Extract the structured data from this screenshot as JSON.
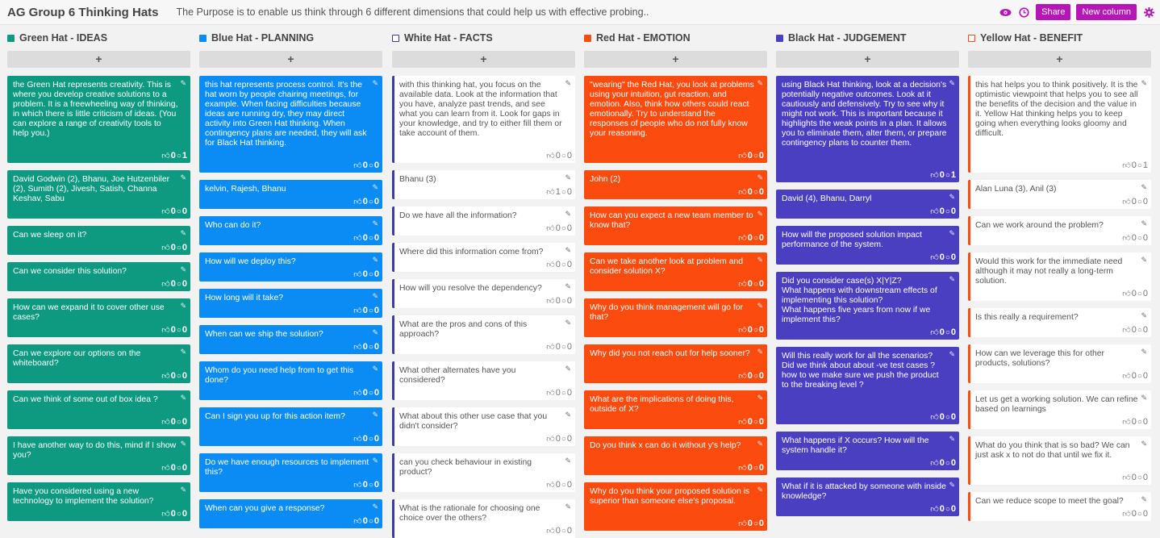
{
  "board": {
    "title": "AG Group 6 Thinking Hats",
    "purpose": "The Purpose is to enable us think through 6 different dimensions that could help us with effective probing.."
  },
  "actions": {
    "share_label": "Share",
    "new_column_label": "New column",
    "accent": "#b417b5"
  },
  "add_label": "+",
  "columns": [
    {
      "title": "Green Hat - IDEAS",
      "color": "#0e9a81",
      "style": "solid",
      "cards": [
        {
          "text": "the Green Hat represents creativity. This is where you develop creative solutions to a problem. It is a freewheeling way of thinking, in which there is little criticism of ideas. (You can explore a range of creativity tools to help you.)",
          "likes": "0",
          "comments": "1"
        },
        {
          "text": "David Godwin (2), Bhanu, Joe Hutzenbiler (2), Sumith (2), Jivesh, Satish, Channa Keshav, Sabu",
          "likes": "0",
          "comments": "0"
        },
        {
          "text": "Can we sleep on it?",
          "likes": "0",
          "comments": "0"
        },
        {
          "text": "Can we consider this solution?",
          "likes": "0",
          "comments": "0"
        },
        {
          "text": "How can we expand it to cover other use cases?",
          "likes": "0",
          "comments": "0"
        },
        {
          "text": "Can we explore our options on the whiteboard?",
          "likes": "0",
          "comments": "0"
        },
        {
          "text": "Can we think of some out of box idea ?",
          "likes": "0",
          "comments": "0"
        },
        {
          "text": "I have another way to do this, mind if I show you?",
          "likes": "0",
          "comments": "0"
        },
        {
          "text": "Have you considered using a new technology to implement the solution?",
          "likes": "0",
          "comments": "0"
        }
      ]
    },
    {
      "title": "Blue Hat - PLANNING",
      "color": "#0a8cf4",
      "style": "solid",
      "cards": [
        {
          "text": "this hat represents process control. It's the hat worn by people chairing meetings, for example. When facing difficulties because ideas are running dry, they may direct activity into Green Hat thinking. When contingency plans are needed, they will ask for Black Hat thinking.",
          "likes": "0",
          "comments": "0"
        },
        {
          "text": "kelvin, Rajesh, Bhanu",
          "likes": "0",
          "comments": "0"
        },
        {
          "text": "Who can do it?",
          "likes": "0",
          "comments": "0"
        },
        {
          "text": "How will we deploy this?",
          "likes": "0",
          "comments": "0"
        },
        {
          "text": "How long will it take?",
          "likes": "0",
          "comments": "0"
        },
        {
          "text": "When can we ship the solution?",
          "likes": "0",
          "comments": "0"
        },
        {
          "text": "Whom do you need help from to get this done?",
          "likes": "0",
          "comments": "0"
        },
        {
          "text": "Can I sign you up for this action item?",
          "likes": "0",
          "comments": "0"
        },
        {
          "text": "Do we have enough resources to implement this?",
          "likes": "0",
          "comments": "0"
        },
        {
          "text": "When can you give a response?",
          "likes": "0",
          "comments": "0"
        }
      ]
    },
    {
      "title": "White Hat - FACTS",
      "color": "#3f3a9e",
      "style": "light",
      "cards": [
        {
          "text": "with this thinking hat, you focus on the available data. Look at the information that you have, analyze past trends, and see what you can learn from it. Look for gaps in your knowledge, and try to either fill them or take account of them.",
          "likes": "0",
          "comments": "0"
        },
        {
          "text": "Bhanu (3)",
          "likes": "1",
          "comments": "0"
        },
        {
          "text": "Do we have all the information?",
          "likes": "0",
          "comments": "0"
        },
        {
          "text": "Where did this information come from?",
          "likes": "0",
          "comments": "0"
        },
        {
          "text": "How will you resolve the dependency?",
          "likes": "0",
          "comments": "0"
        },
        {
          "text": "What are the pros and cons of this approach?",
          "likes": "0",
          "comments": "0"
        },
        {
          "text": "What other alternates have you considered?",
          "likes": "0",
          "comments": "0"
        },
        {
          "text": "What about this other use case that you didn't consider?",
          "likes": "0",
          "comments": "0"
        },
        {
          "text": "can you check behaviour in existing product?",
          "likes": "0",
          "comments": "0"
        },
        {
          "text": "What is the rationale for choosing one choice over the others?",
          "likes": "0",
          "comments": "0"
        }
      ]
    },
    {
      "title": "Red Hat - EMOTION",
      "color": "#fb4b0f",
      "style": "solid",
      "cards": [
        {
          "text": "\"wearing\" the Red Hat, you look at problems using your intuition, gut reaction, and emotion. Also, think how others could react emotionally. Try to understand the responses of people who do not fully know your reasoning.",
          "likes": "0",
          "comments": "0"
        },
        {
          "text": "John (2)",
          "likes": "0",
          "comments": "0"
        },
        {
          "text": "How can you expect a new team member to know that?",
          "likes": "0",
          "comments": "0"
        },
        {
          "text": "Can we take another look at problem and consider solution X?",
          "likes": "0",
          "comments": "0"
        },
        {
          "text": "Why do you think management will go for that?",
          "likes": "0",
          "comments": "0"
        },
        {
          "text": "Why did you not reach out for help sooner?",
          "likes": "0",
          "comments": "0"
        },
        {
          "text": "What are the implications of doing this, outside of X?",
          "likes": "0",
          "comments": "0"
        },
        {
          "text": "Do you think x can do it without y's help?",
          "likes": "0",
          "comments": "0"
        },
        {
          "text": "Why do you think your proposed solution is superior than someone else's proposal.",
          "likes": "0",
          "comments": "0"
        }
      ]
    },
    {
      "title": "Black Hat - JUDGEMENT",
      "color": "#4b3fc1",
      "style": "solid",
      "cards": [
        {
          "text": "using Black Hat thinking, look at a decision's potentially negative outcomes. Look at it cautiously and defensively. Try to see why it might not work. This is important because it highlights the weak points in a plan. It allows you to eliminate them, alter them, or prepare contingency plans to counter them.",
          "likes": "0",
          "comments": "1"
        },
        {
          "text": "David (4), Bhanu, Darryl",
          "likes": "0",
          "comments": "0"
        },
        {
          "text": "How will the proposed solution impact performance of the system.",
          "likes": "0",
          "comments": "0"
        },
        {
          "text": "Did you consider case(s) X|Y|Z?\nWhat happens with downstream effects of implementing this solution?\nWhat happens five years from now if we implement this?",
          "likes": "0",
          "comments": "0"
        },
        {
          "text": "Will this really work for all the scenarios?\nDid we think about about -ve test cases ?\nhow to we make sure we push the product to the breaking level ?",
          "likes": "0",
          "comments": "0"
        },
        {
          "text": "What happens if X occurs? How will the system handle it?",
          "likes": "0",
          "comments": "0"
        },
        {
          "text": "What if it is attacked by someone with inside knowledge?",
          "likes": "0",
          "comments": "0"
        }
      ]
    },
    {
      "title": "Yellow Hat - BENEFIT",
      "color": "#fb4b0f",
      "style": "light",
      "cards": [
        {
          "text": "this hat helps you to think positively. It is the optimistic viewpoint that helps you to see all the benefits of the decision and the value in it. Yellow Hat thinking helps you to keep going when everything looks gloomy and difficult.",
          "likes": "0",
          "comments": "1"
        },
        {
          "text": "Alan Luna (3), Anil (3)",
          "likes": "0",
          "comments": "0"
        },
        {
          "text": "Can we work around the problem?",
          "likes": "0",
          "comments": "0"
        },
        {
          "text": "Would this work for the immediate need although it may not really a long-term solution.",
          "likes": "0",
          "comments": "0"
        },
        {
          "text": "Is this really a requirement?",
          "likes": "0",
          "comments": "0"
        },
        {
          "text": "How can we leverage this for other products, solutions?",
          "likes": "0",
          "comments": "0"
        },
        {
          "text": "Let us get a working solution. We can refine based on learnings",
          "likes": "0",
          "comments": "0"
        },
        {
          "text": "What do you think that is so bad? We can just ask x to not do that until we fix it.",
          "likes": "0",
          "comments": "0"
        },
        {
          "text": "Can we reduce scope to meet the goal?",
          "likes": "0",
          "comments": "0"
        }
      ]
    }
  ]
}
